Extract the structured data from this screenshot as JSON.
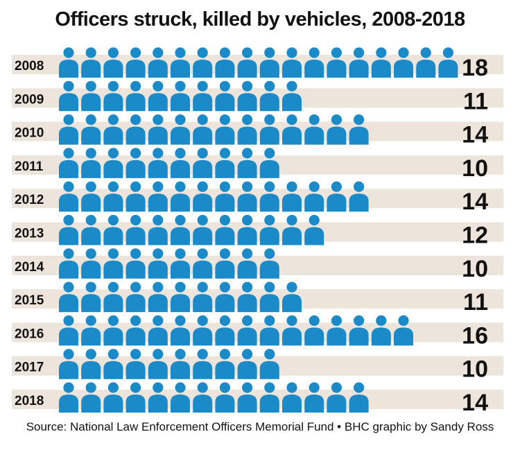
{
  "title": "Officers struck, killed by vehicles, 2008-2018",
  "source": "Source: National Law Enforcement Officers Memorial Fund  •  BHC graphic by Sandy Ross",
  "colors": {
    "icon": "#1a8ac8",
    "band": "#ede5dc",
    "text": "#111111"
  },
  "chart_data": {
    "type": "bar",
    "icon": "person-icon",
    "categories": [
      "2008",
      "2009",
      "2010",
      "2011",
      "2012",
      "2013",
      "2014",
      "2015",
      "2016",
      "2017",
      "2018"
    ],
    "values": [
      18,
      11,
      14,
      10,
      14,
      12,
      10,
      11,
      16,
      10,
      14
    ],
    "labels": [
      "18",
      "11",
      "14",
      "10",
      "14",
      "12",
      "10",
      "11",
      "16",
      "10",
      "14"
    ]
  }
}
